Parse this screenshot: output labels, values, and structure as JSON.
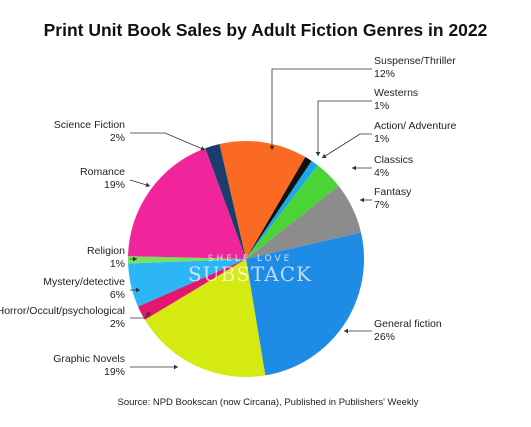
{
  "chart_data": {
    "type": "pie",
    "title": "Print Unit Book Sales by Adult Fiction Genres in 2022",
    "source": "Source: NPD Bookscan (now Circana), Published in Publishers' Weekly",
    "watermark": {
      "line1": "SHELF LOVE",
      "line2": "SUBSTACK"
    },
    "slices": [
      {
        "label": "Suspense/Thriller",
        "pct_label": "12%",
        "value": 12,
        "color": "#fb6a23"
      },
      {
        "label": "Westerns",
        "pct_label": "1%",
        "value": 1,
        "color": "#111111"
      },
      {
        "label": "Action/ Adventure",
        "pct_label": "1%",
        "value": 1,
        "color": "#1aa7ec"
      },
      {
        "label": "Classics",
        "pct_label": "4%",
        "value": 4,
        "color": "#4bd436"
      },
      {
        "label": "Fantasy",
        "pct_label": "7%",
        "value": 7,
        "color": "#8c8c8c"
      },
      {
        "label": "General fiction",
        "pct_label": "26%",
        "value": 26,
        "color": "#1e8ce6"
      },
      {
        "label": "Graphic Novels",
        "pct_label": "19%",
        "value": 19,
        "color": "#d4ea10"
      },
      {
        "label": "Horror/Occult/psychological",
        "pct_label": "2%",
        "value": 2,
        "color": "#e3176f"
      },
      {
        "label": "Mystery/detective",
        "pct_label": "6%",
        "value": 6,
        "color": "#2db6f5"
      },
      {
        "label": "Religion",
        "pct_label": "1%",
        "value": 1,
        "color": "#76e25b"
      },
      {
        "label": "Romance",
        "pct_label": "19%",
        "value": 19,
        "color": "#f0259b"
      },
      {
        "label": "Science Fiction",
        "pct_label": "2%",
        "value": 2,
        "color": "#1b3d6e"
      }
    ]
  }
}
